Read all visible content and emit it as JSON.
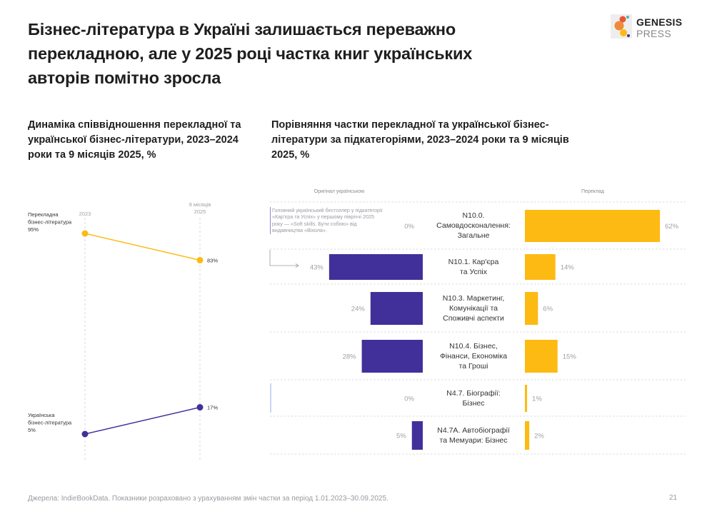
{
  "header": {
    "title": "Бізнес-література в Україні залишається переважно перекладною, але у 2025 році частка книг українських авторів помітно зросла",
    "logo_line1": "GENESIS",
    "logo_line2": "PRESS"
  },
  "colors": {
    "translated": "#FDBA12",
    "ukrainian": "#41309A",
    "muted_text": "#9A9AA2"
  },
  "annotation": {
    "text": "Головний український бестселер у підкатегорії «Кар'єра та Успіх» у першому півріччі 2025 року — «Soft skills. Бути собою» від видавництва «Віхола»."
  },
  "footer": {
    "source": "Джерела: IndieBookData. Показники розраховано з урахуванням змін частки за період 1.01.2023–30.09.2025.",
    "page": "21"
  },
  "chart_data": [
    {
      "type": "line",
      "title": "Динаміка співвідношення перекладної та української бізнес-літератури, 2023–2024 роки та 9 місяців 2025, %",
      "x": [
        "2023",
        "9 місяців 2025"
      ],
      "x_labels": [
        [
          "2023"
        ],
        [
          "9 місяців",
          "2025"
        ]
      ],
      "series": [
        {
          "name": "Перекладна бізнес-література",
          "label_lines": [
            "Перекладна",
            "бізнес-література"
          ],
          "values": [
            95,
            83
          ],
          "value_labels": [
            "95%",
            "83%"
          ],
          "color": "#FDBA12"
        },
        {
          "name": "Українська бізнес-література",
          "label_lines": [
            "Українська",
            "бізнес-література"
          ],
          "values": [
            5,
            17
          ],
          "value_labels": [
            "5%",
            "17%"
          ],
          "color": "#41309A"
        }
      ],
      "ylim": [
        0,
        100
      ],
      "grid": "vertical-dashed"
    },
    {
      "type": "bar",
      "orientation": "horizontal-diverging",
      "title": "Порівняння частки перекладної та української бізнес-літератури за підкатегоріями, 2023–2024 роки та 9 місяців 2025, %",
      "left_header": "Оригінал українською",
      "right_header": "Переклад",
      "categories": [
        [
          "N10.0.",
          "Самовдосконалення:",
          "Загальне"
        ],
        [
          "N10.1. Кар'єра",
          "та Успіх"
        ],
        [
          "N10.3. Маркетинг,",
          "Комунікації та",
          "Споживчі аспекти"
        ],
        [
          "N10.4. Бізнес,",
          "Фінанси, Економіка",
          "та Гроші"
        ],
        [
          "N4.7. Біографії:",
          "Бізнес"
        ],
        [
          "N4.7A. Автобіографії",
          "та Мемуари: Бізнес"
        ]
      ],
      "series": [
        {
          "name": "Оригінал українською",
          "values": [
            0,
            43,
            24,
            28,
            0,
            5
          ],
          "labels": [
            "0%",
            "43%",
            "24%",
            "28%",
            "0%",
            "5%"
          ],
          "color": "#41309A"
        },
        {
          "name": "Переклад",
          "values": [
            62,
            14,
            6,
            15,
            1,
            2
          ],
          "labels": [
            "62%",
            "14%",
            "6%",
            "15%",
            "1%",
            "2%"
          ],
          "color": "#FDBA12"
        }
      ]
    }
  ]
}
